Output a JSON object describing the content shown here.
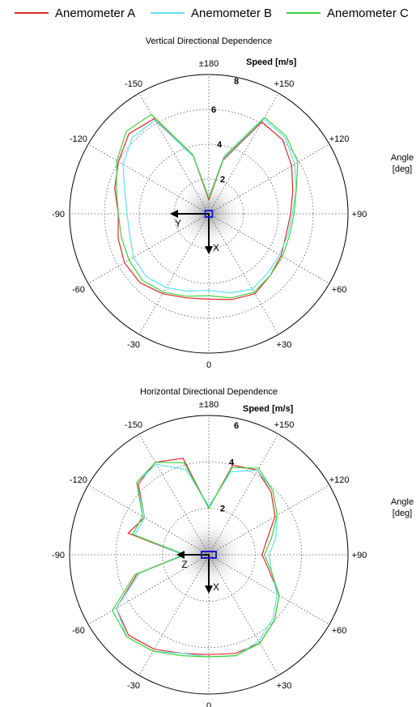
{
  "legend": {
    "series": [
      {
        "name": "Anemometer A",
        "color": "#e0282b"
      },
      {
        "name": "Anemometer B",
        "color": "#5fe2ee"
      },
      {
        "name": "Anemometer C",
        "color": "#3fd23f"
      }
    ]
  },
  "chart_data": [
    {
      "type": "polar-line",
      "title": "Vertical Directional Dependence",
      "radial_label": "Speed [m/s]",
      "angular_label_line1": "Angle",
      "angular_label_line2": "[deg]",
      "rlim": [
        0,
        8
      ],
      "radial_ticks": [
        "2",
        "4",
        "6",
        "8"
      ],
      "angle_ticks": [
        "±180",
        "+150",
        "+120",
        "+90",
        "+60",
        "+30",
        "0",
        "-30",
        "-60",
        "-90",
        "-120",
        "-150"
      ],
      "axis_labels": {
        "horizontal": "Y",
        "vertical": "X"
      },
      "grid": true,
      "angles_deg": [
        0,
        15,
        30,
        45,
        60,
        75,
        90,
        105,
        120,
        135,
        150,
        165,
        180,
        195,
        210,
        225,
        240,
        255,
        270,
        285,
        300,
        315,
        330,
        345
      ],
      "series": [
        {
          "name": "Anemometer A",
          "color": "#e0282b",
          "values": [
            4.9,
            5.1,
            5.3,
            5.0,
            4.8,
            4.6,
            4.7,
            5.0,
            5.5,
            6.0,
            6.1,
            3.2,
            0.8,
            3.4,
            6.3,
            6.5,
            6.0,
            5.6,
            5.2,
            5.4,
            5.6,
            5.6,
            5.3,
            5.0
          ]
        },
        {
          "name": "Anemometer B",
          "color": "#5fe2ee",
          "values": [
            4.4,
            4.7,
            5.0,
            4.8,
            4.7,
            4.7,
            4.8,
            5.2,
            5.7,
            6.2,
            6.3,
            3.3,
            0.9,
            3.4,
            6.2,
            6.2,
            5.7,
            5.0,
            4.7,
            4.7,
            5.0,
            5.1,
            4.9,
            4.6
          ]
        },
        {
          "name": "Anemometer C",
          "color": "#3fd23f",
          "values": [
            4.7,
            5.0,
            5.2,
            5.0,
            4.9,
            4.8,
            4.9,
            5.2,
            5.9,
            6.3,
            6.4,
            3.4,
            0.9,
            3.5,
            6.6,
            6.7,
            6.1,
            5.5,
            5.2,
            5.2,
            5.3,
            5.4,
            5.2,
            4.9
          ]
        }
      ]
    },
    {
      "type": "polar-line",
      "title": "Horizontal Directional Dependence",
      "radial_label": "Speed [m/s]",
      "angular_label_line1": "Angle",
      "angular_label_line2": "[deg]",
      "rlim": [
        0,
        6
      ],
      "radial_ticks": [
        "2",
        "4",
        "6"
      ],
      "angle_ticks": [
        "±180",
        "+150",
        "+120",
        "+90",
        "+60",
        "+30",
        "0",
        "-30",
        "-60",
        "-90",
        "-120",
        "-150"
      ],
      "axis_labels": {
        "horizontal": "Z",
        "vertical": "X"
      },
      "grid": true,
      "angles_deg": [
        0,
        15,
        30,
        45,
        60,
        75,
        90,
        105,
        120,
        135,
        150,
        165,
        180,
        195,
        210,
        225,
        240,
        255,
        270,
        285,
        300,
        315,
        330,
        345
      ],
      "series": [
        {
          "name": "Anemometer A",
          "color": "#e0282b",
          "values": [
            4.3,
            4.4,
            4.4,
            4.0,
            3.5,
            2.7,
            2.3,
            2.6,
            3.3,
            3.8,
            4.2,
            4.0,
            2.0,
            4.3,
            4.6,
            4.3,
            3.2,
            3.6,
            1.1,
            3.2,
            4.6,
            4.9,
            4.7,
            4.4
          ]
        },
        {
          "name": "Anemometer B",
          "color": "#5fe2ee",
          "values": [
            4.4,
            4.5,
            4.3,
            3.9,
            3.4,
            2.8,
            2.6,
            3.0,
            3.4,
            3.9,
            4.2,
            3.7,
            2.1,
            3.8,
            4.5,
            4.4,
            3.2,
            3.3,
            1.1,
            3.1,
            4.6,
            5.0,
            4.8,
            4.4
          ]
        },
        {
          "name": "Anemometer C",
          "color": "#3fd23f",
          "values": [
            4.4,
            4.5,
            4.4,
            4.0,
            3.5,
            2.8,
            2.4,
            2.8,
            3.4,
            3.9,
            4.3,
            3.9,
            2.0,
            4.1,
            4.6,
            4.4,
            3.3,
            3.4,
            1.0,
            3.3,
            4.8,
            5.0,
            4.8,
            4.5
          ]
        }
      ]
    }
  ]
}
